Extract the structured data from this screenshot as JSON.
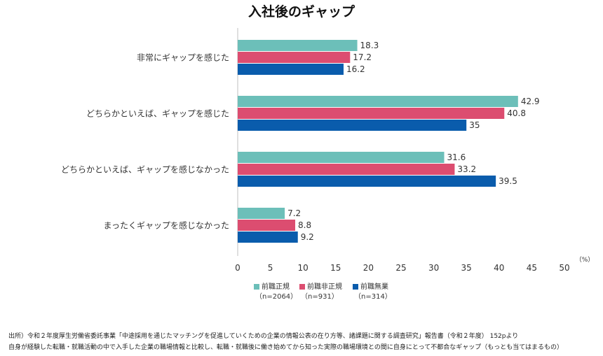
{
  "chart_data": {
    "type": "bar",
    "orientation": "horizontal",
    "title": "入社後のギャップ",
    "categories": [
      "非常にギャップを感じた",
      "どちらかといえば、ギャップを感じた",
      "どちらかといえば、ギャップを感じなかった",
      "まったくギャップを感じなかった"
    ],
    "series": [
      {
        "name": "前職正規",
        "n_label": "（n=2064）",
        "color": "#6cbfb9",
        "values": [
          18.3,
          42.9,
          31.6,
          7.2
        ]
      },
      {
        "name": "前職非正規",
        "n_label": "（n=931）",
        "color": "#dc4d70",
        "values": [
          17.2,
          40.8,
          33.2,
          8.8
        ]
      },
      {
        "name": "前職無業",
        "n_label": "（n=314）",
        "color": "#0a5cac",
        "values": [
          16.2,
          35,
          39.5,
          9.2
        ]
      }
    ],
    "xlim": [
      0,
      50
    ],
    "xticks": [
      "0",
      "5",
      "10",
      "15",
      "20",
      "25",
      "30",
      "35",
      "40",
      "45",
      "50"
    ],
    "unit_label": "（%）",
    "grid": false,
    "legend_position": "bottom"
  },
  "footer": {
    "line1": "出所）令和２年度厚生労働省委託事業「中途採用を通じたマッチングを促進していくための企業の情報公表の在り方等、諸課題に関する調査研究」報告書（令和２年度） 152pより",
    "line2": "自身が経験した転職・就職活動の中で入手した企業の職場情報と比較し、転職・就職後に働き始めてから知った実際の職場環境との間に自身にとって不都合なギャップ（もっとも当てはまるもの）"
  }
}
